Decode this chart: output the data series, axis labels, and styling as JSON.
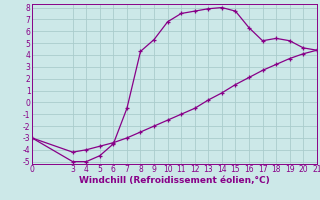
{
  "xlabel": "Windchill (Refroidissement éolien,°C)",
  "bg_color": "#cce8e8",
  "grid_color": "#aacccc",
  "line_color": "#880088",
  "xlim": [
    0,
    21
  ],
  "ylim": [
    -5.2,
    8.3
  ],
  "xticks": [
    0,
    3,
    4,
    5,
    6,
    7,
    8,
    9,
    10,
    11,
    12,
    13,
    14,
    15,
    16,
    17,
    18,
    19,
    20,
    21
  ],
  "yticks": [
    -5,
    -4,
    -3,
    -2,
    -1,
    0,
    1,
    2,
    3,
    4,
    5,
    6,
    7,
    8
  ],
  "curve1_x": [
    0,
    3,
    4,
    5,
    6,
    7,
    8,
    9,
    10,
    11,
    12,
    13,
    14,
    15,
    16,
    17,
    18,
    19,
    20,
    21
  ],
  "curve1_y": [
    -3.0,
    -5.0,
    -5.0,
    -4.5,
    -3.5,
    -0.5,
    4.3,
    5.3,
    6.8,
    7.5,
    7.7,
    7.9,
    8.0,
    7.7,
    6.3,
    5.2,
    5.4,
    5.2,
    4.6,
    4.4
  ],
  "curve2_x": [
    0,
    3,
    4,
    5,
    6,
    7,
    8,
    9,
    10,
    11,
    12,
    13,
    14,
    15,
    16,
    17,
    18,
    19,
    20,
    21
  ],
  "curve2_y": [
    -3.0,
    -4.2,
    -4.0,
    -3.7,
    -3.4,
    -3.0,
    -2.5,
    -2.0,
    -1.5,
    -1.0,
    -0.5,
    0.2,
    0.8,
    1.5,
    2.1,
    2.7,
    3.2,
    3.7,
    4.1,
    4.4
  ],
  "tick_fontsize": 5.5,
  "xlabel_fontsize": 6.5
}
